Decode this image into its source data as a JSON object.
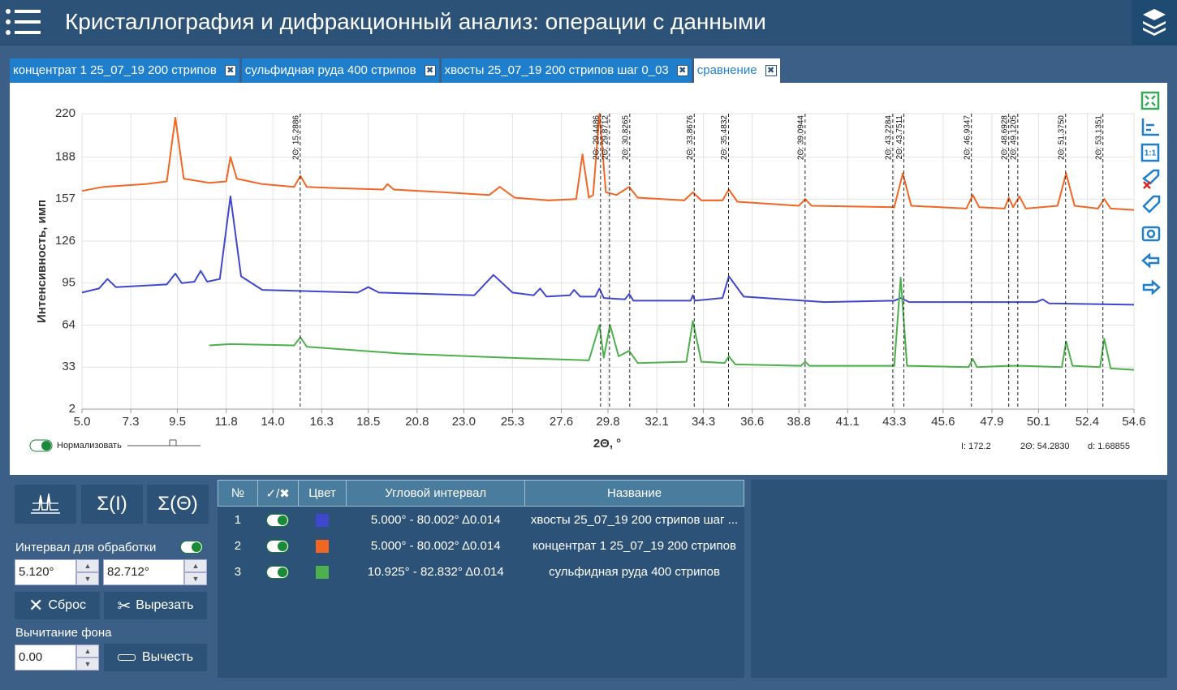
{
  "header": {
    "title": "Кристаллография и дифракционный анализ: операции с данными"
  },
  "tabs": [
    "концентрат 1 25_07_19 200 стрипов",
    "сульфидная руда 400 стрипов",
    "хвосты 25_07_19 200 стрипов шаг 0_03",
    "сравнение"
  ],
  "active_tab": 3,
  "chart_data": {
    "type": "line",
    "xlabel": "2Θ, °",
    "ylabel": "Интенсивность, имп",
    "xlim": [
      5.0,
      54.6
    ],
    "ylim": [
      2,
      220
    ],
    "xticks": [
      {
        "value": 5.0,
        "label": "5.0"
      },
      7.3,
      9.5,
      11.8,
      {
        "value": 14.0,
        "label": "14.0"
      },
      16.3,
      18.5,
      20.8,
      {
        "value": 23.0,
        "label": "23.0"
      },
      25.3,
      27.6,
      29.8,
      32.1,
      34.3,
      36.6,
      38.8,
      41.1,
      43.3,
      45.6,
      47.9,
      50.1,
      52.4,
      54.6
    ],
    "yticks": [
      2,
      33,
      64,
      95,
      126,
      157,
      188,
      220
    ],
    "grid": true,
    "markers": [
      {
        "value": 15.2886,
        "label": "2Θ: 15.2886"
      },
      {
        "value": 29.4486,
        "label": "2Θ: 29.4486"
      },
      {
        "value": 29.8712,
        "label": "2Θ: 29.8712"
      },
      {
        "value": 30.8265,
        "label": "2Θ: 30.8265"
      },
      {
        "value": 33.8676,
        "label": "2Θ: 33.8676"
      },
      {
        "value": 35.4832,
        "label": "2Θ: 35.4832"
      },
      {
        "value": 39.0944,
        "label": "2Θ: 39.0944"
      },
      {
        "value": 43.2284,
        "label": "2Θ: 43.2284"
      },
      {
        "value": 43.7511,
        "label": "2Θ: 43.7511"
      },
      {
        "value": 46.9347,
        "label": "2Θ: 46.9347"
      },
      {
        "value": 48.6928,
        "label": "2Θ: 48.6928"
      },
      {
        "value": 49.1205,
        "label": "2Θ: 49.1205"
      },
      {
        "value": 51.375,
        "label": "2Θ: 51.3750"
      },
      {
        "value": 53.1351,
        "label": "2Θ: 53.1351"
      }
    ],
    "series": [
      {
        "color": "#f26522",
        "x": [
          5,
          6,
          8,
          9.0,
          9.4,
          9.8,
          11,
          11.8,
          12.0,
          12.3,
          13.5,
          15.0,
          15.3,
          15.6,
          17,
          19.2,
          19.4,
          19.7,
          22,
          24.2,
          24.7,
          25.4,
          27,
          28.3,
          28.6,
          28.9,
          29.1,
          29.4,
          29.7,
          30.2,
          30.8,
          31.2,
          33.4,
          33.8,
          34.2,
          35.2,
          35.5,
          35.9,
          38.8,
          39.1,
          39.4,
          43.3,
          43.7,
          44.1,
          46.7,
          47.0,
          47.3,
          48.5,
          48.7,
          48.9,
          49.2,
          49.5,
          51.0,
          51.4,
          51.8,
          52.9,
          53.2,
          53.5,
          54.6
        ],
        "values": [
          163,
          166,
          168,
          170,
          217,
          172,
          169,
          170,
          188,
          172,
          168,
          166,
          174,
          166,
          165,
          164,
          168,
          164,
          162,
          160,
          166,
          158,
          156,
          157,
          190,
          158,
          160,
          220,
          162,
          160,
          166,
          158,
          156,
          162,
          156,
          156,
          164,
          155,
          152,
          157,
          152,
          151,
          176,
          152,
          150,
          160,
          151,
          150,
          158,
          151,
          159,
          150,
          152,
          176,
          152,
          150,
          157,
          150,
          149
        ]
      },
      {
        "color": "#3f48cc",
        "x": [
          5,
          5.8,
          6.2,
          6.6,
          9.0,
          9.4,
          9.7,
          10.3,
          10.6,
          10.9,
          11.5,
          12.0,
          12.5,
          13.5,
          18.0,
          18.5,
          19.0,
          23.5,
          24.4,
          25.3,
          26.3,
          26.6,
          26.9,
          28.0,
          28.2,
          28.5,
          29.2,
          29.4,
          29.6,
          30.6,
          30.8,
          31.0,
          33.7,
          33.8,
          33.9,
          35.2,
          35.5,
          36.2,
          40.0,
          43.3,
          43.6,
          44.0,
          50.0,
          50.3,
          50.6,
          54.6
        ],
        "values": [
          88,
          91,
          98,
          92,
          94,
          102,
          95,
          96,
          104,
          96,
          98,
          159,
          100,
          90,
          88,
          92,
          88,
          86,
          101,
          88,
          86,
          91,
          85,
          86,
          90,
          85,
          85,
          91,
          84,
          83,
          87,
          82,
          82,
          86,
          82,
          84,
          100,
          85,
          81,
          82,
          84,
          81,
          81,
          83,
          80,
          79
        ]
      },
      {
        "color": "#4cb04c",
        "x": [
          11.0,
          12.0,
          15.0,
          15.3,
          15.6,
          20,
          25,
          28.9,
          29.4,
          29.6,
          29.9,
          30.3,
          30.8,
          31.2,
          33.5,
          33.8,
          34.2,
          35.3,
          35.5,
          35.8,
          38.9,
          39.1,
          39.3,
          43.3,
          43.6,
          43.9,
          46.8,
          47.0,
          47.2,
          48.7,
          49.2,
          51.2,
          51.4,
          51.7,
          53.0,
          53.2,
          53.5,
          54.6
        ],
        "values": [
          49,
          50,
          49,
          55,
          48,
          43,
          40,
          38,
          64,
          40,
          64,
          41,
          45,
          36,
          37,
          67,
          37,
          36,
          41,
          35,
          34,
          37,
          34,
          34,
          99,
          34,
          33,
          39,
          33,
          34,
          34,
          33,
          52,
          34,
          33,
          54,
          32,
          31
        ]
      }
    ],
    "normalize_label": "Нормализовать",
    "readouts": [
      "I: 172.2",
      "2Θ: 54.2830",
      "d: 1.68855"
    ]
  },
  "table": {
    "headers": [
      "№",
      "✓/✖",
      "Цвет",
      "Угловой интервал",
      "Название"
    ],
    "rows": [
      {
        "num": 1,
        "color": "#3f48cc",
        "interval": "5.000° - 80.002° Δ0.014",
        "name": "хвосты 25_07_19 200 стрипов шаг ..."
      },
      {
        "num": 2,
        "color": "#f26522",
        "interval": "5.000° - 80.002° Δ0.014",
        "name": "концентрат 1 25_07_19 200 стрипов"
      },
      {
        "num": 3,
        "color": "#4cb04c",
        "interval": "10.925° - 82.832° Δ0.014",
        "name": "сульфидная руда 400 стрипов"
      }
    ]
  },
  "panel": {
    "tools": [
      "Σ(I)",
      "Σ(Θ)"
    ],
    "interval_label": "Интервал для обработки",
    "from": "5.120°",
    "to": "82.712°",
    "reset": "Сброс",
    "cut": "Вырезать",
    "background_label": "Вычитание фона",
    "background_value": "0.00",
    "subtract": "Вычесть"
  }
}
